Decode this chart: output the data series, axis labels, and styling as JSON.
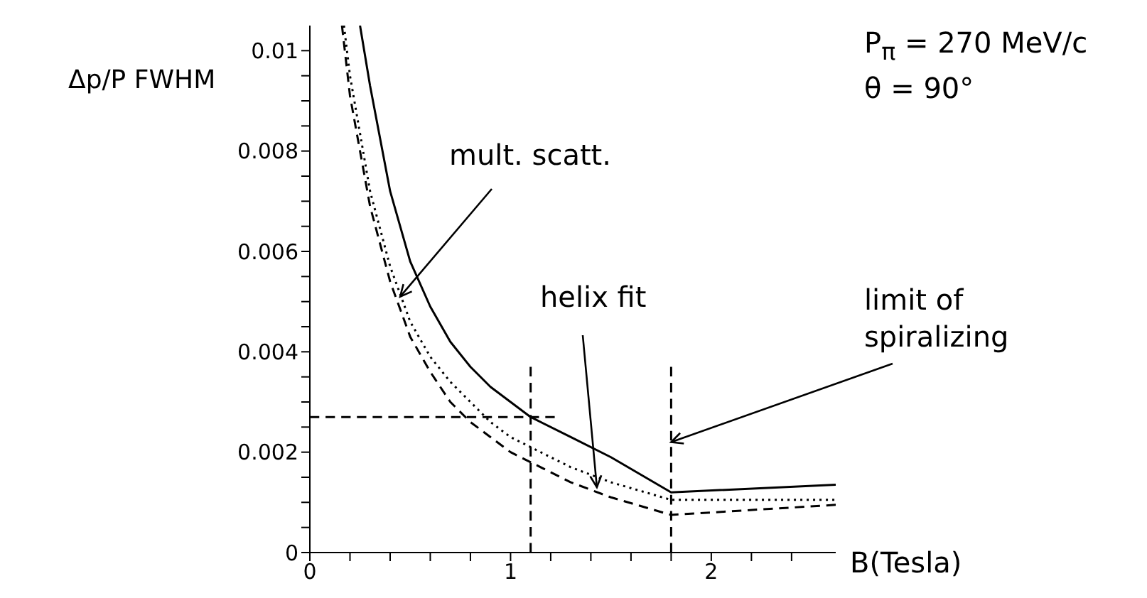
{
  "chart_data": {
    "type": "line",
    "xlabel": "B(Tesla)",
    "ylabel": "Δp/P FWHM",
    "xlim": [
      0,
      2.62
    ],
    "ylim": [
      0,
      0.0105
    ],
    "xticks": [
      0,
      {
        "value": 0.2,
        "label": null
      },
      {
        "value": 0.4,
        "label": null
      },
      {
        "value": 0.6,
        "label": null
      },
      {
        "value": 0.8,
        "label": null
      },
      1,
      {
        "value": 1.2,
        "label": null
      },
      {
        "value": 1.4,
        "label": null
      },
      {
        "value": 1.6,
        "label": null
      },
      {
        "value": 1.8,
        "label": null
      },
      2,
      {
        "value": 2.2,
        "label": null
      },
      {
        "value": 2.4,
        "label": null
      }
    ],
    "yticks": [
      0,
      {
        "value": 0.0005,
        "label": null
      },
      {
        "value": 0.001,
        "label": null
      },
      {
        "value": 0.0015,
        "label": null
      },
      0.002,
      {
        "value": 0.0025,
        "label": null
      },
      {
        "value": 0.003,
        "label": null
      },
      {
        "value": 0.0035,
        "label": null
      },
      0.004,
      {
        "value": 0.0045,
        "label": null
      },
      {
        "value": 0.005,
        "label": null
      },
      {
        "value": 0.0055,
        "label": null
      },
      0.006,
      {
        "value": 0.0065,
        "label": null
      },
      {
        "value": 0.007,
        "label": null
      },
      {
        "value": 0.0075,
        "label": null
      },
      0.008,
      {
        "value": 0.0085,
        "label": null
      },
      {
        "value": 0.009,
        "label": null
      },
      {
        "value": 0.0095,
        "label": null
      },
      0.01
    ],
    "marker": "none",
    "series": [
      {
        "color": "#000000",
        "line_style": "solid",
        "x": [
          0.25,
          0.3,
          0.4,
          0.5,
          0.6,
          0.7,
          0.8,
          0.9,
          1.0,
          1.1,
          1.3,
          1.5,
          1.8,
          2.62
        ],
        "values": [
          0.0105,
          0.0093,
          0.0072,
          0.0058,
          0.0049,
          0.0042,
          0.0037,
          0.0033,
          0.003,
          0.0027,
          0.0023,
          0.0019,
          0.0012,
          0.00135
        ]
      },
      {
        "color": "#000000",
        "line_style": "dotted",
        "x": [
          0.17,
          0.2,
          0.3,
          0.4,
          0.5,
          0.6,
          0.7,
          0.8,
          0.9,
          1.0,
          1.1,
          1.3,
          1.5,
          1.8,
          2.62
        ],
        "values": [
          0.0105,
          0.0095,
          0.0072,
          0.0057,
          0.0046,
          0.0039,
          0.0034,
          0.003,
          0.0026,
          0.0023,
          0.0021,
          0.0017,
          0.0014,
          0.00105,
          0.00105
        ]
      },
      {
        "color": "#000000",
        "line_style": "dashed",
        "x": [
          0.16,
          0.2,
          0.3,
          0.4,
          0.5,
          0.6,
          0.7,
          0.8,
          0.9,
          1.0,
          1.1,
          1.3,
          1.5,
          1.8,
          2.62
        ],
        "values": [
          0.0105,
          0.0091,
          0.0069,
          0.0054,
          0.0043,
          0.0036,
          0.003,
          0.0026,
          0.0023,
          0.002,
          0.0018,
          0.0014,
          0.0011,
          0.00075,
          0.00095
        ]
      },
      {
        "color": "#000000",
        "line_style": "dashed",
        "x": [
          1.1,
          1.1
        ],
        "values": [
          0,
          0.0037
        ]
      },
      {
        "color": "#000000",
        "line_style": "dashed",
        "x": [
          0,
          1.22
        ],
        "values": [
          0.0027,
          0.0027
        ]
      },
      {
        "color": "#000000",
        "line_style": "dashed",
        "x": [
          1.8,
          1.8
        ],
        "values": [
          0,
          0.0037
        ]
      }
    ],
    "annotations": [
      "P$_{π}$ = 270 MeV/c",
      "θ = 90°",
      {
        "text": "mult. scatt.",
        "x": 0.45,
        "y": 0.0051
      },
      {
        "text": "helix fit",
        "x": 1.43,
        "y": 0.0013
      },
      {
        "text": "limit of spiralizing",
        "x": 1.8,
        "y": 0.0022
      }
    ]
  }
}
